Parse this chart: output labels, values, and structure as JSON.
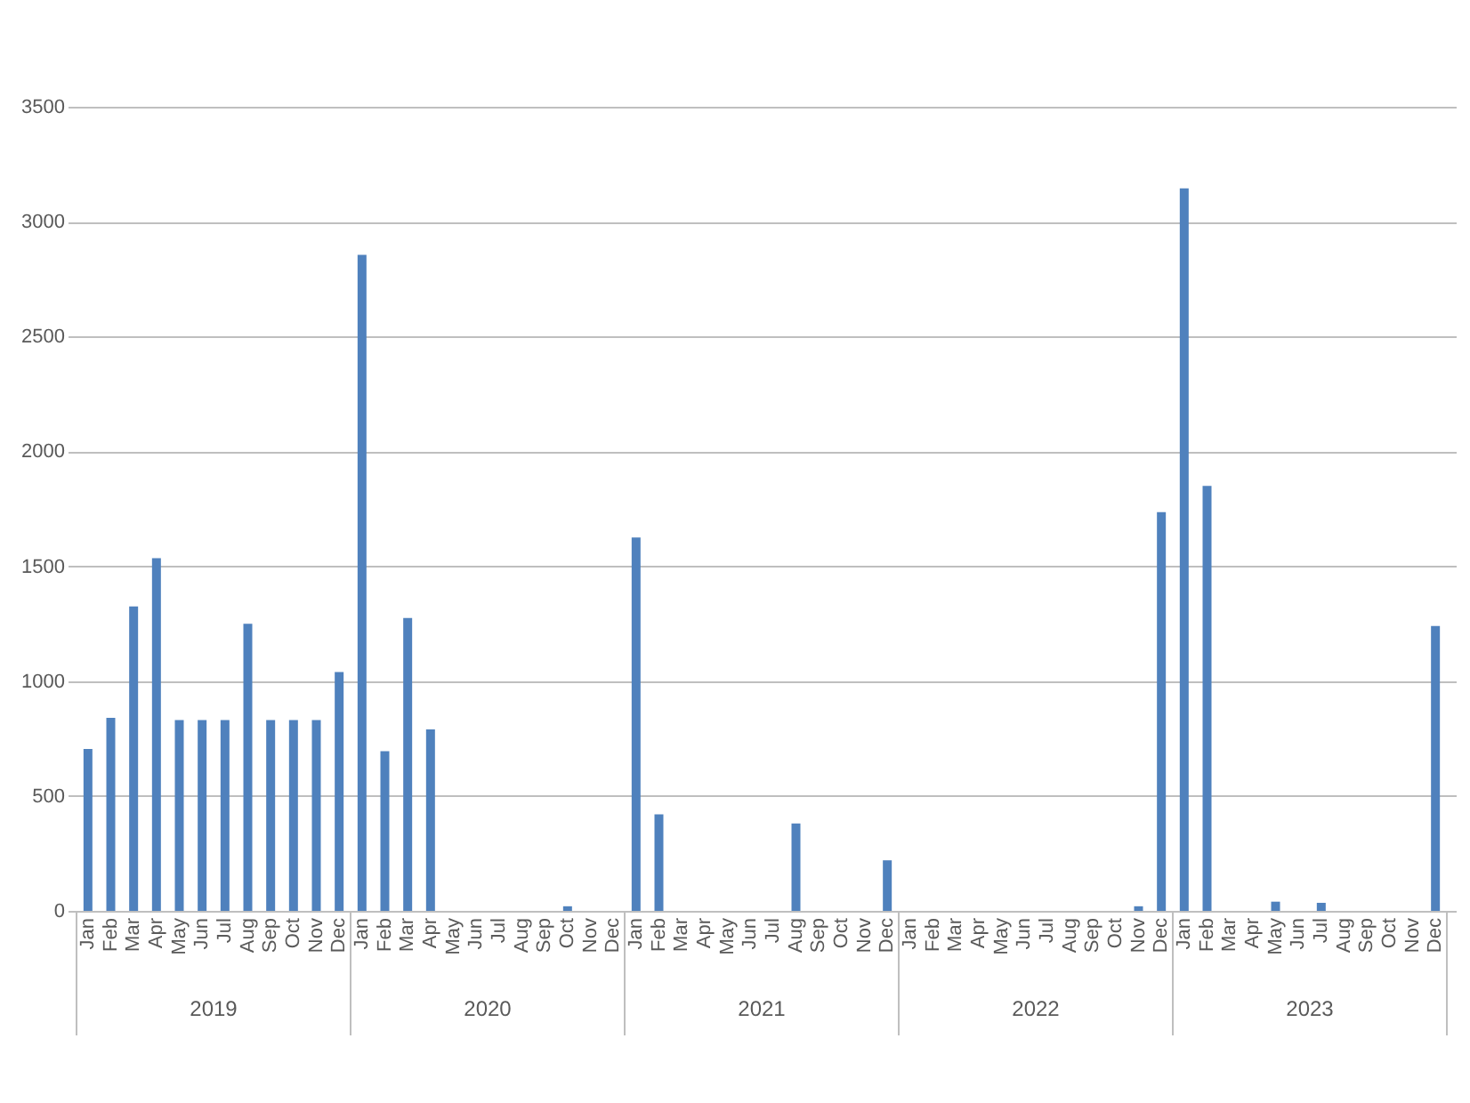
{
  "chart_data": {
    "type": "bar",
    "categories": [
      "Jan",
      "Feb",
      "Mar",
      "Apr",
      "May",
      "Jun",
      "Jul",
      "Aug",
      "Sep",
      "Oct",
      "Nov",
      "Dec",
      "Jan",
      "Feb",
      "Mar",
      "Apr",
      "May",
      "Jun",
      "Jul",
      "Aug",
      "Sep",
      "Oct",
      "Nov",
      "Dec",
      "Jan",
      "Feb",
      "Mar",
      "Apr",
      "May",
      "Jun",
      "Jul",
      "Aug",
      "Sep",
      "Oct",
      "Nov",
      "Dec",
      "Jan",
      "Feb",
      "Mar",
      "Apr",
      "May",
      "Jun",
      "Jul",
      "Aug",
      "Sep",
      "Oct",
      "Nov",
      "Dec",
      "Jan",
      "Feb",
      "Mar",
      "Apr",
      "May",
      "Jun",
      "Jul",
      "Aug",
      "Sep",
      "Oct",
      "Nov",
      "Dec"
    ],
    "series": [
      {
        "color": "#4f81bd",
        "values": [
          705,
          840,
          1325,
          1535,
          830,
          830,
          830,
          1250,
          830,
          830,
          830,
          1040,
          2855,
          695,
          1275,
          790,
          0,
          0,
          0,
          0,
          0,
          20,
          0,
          0,
          1625,
          420,
          0,
          0,
          0,
          0,
          0,
          380,
          0,
          0,
          0,
          220,
          0,
          0,
          0,
          0,
          0,
          0,
          0,
          0,
          0,
          0,
          20,
          1735,
          3145,
          1850,
          0,
          0,
          40,
          0,
          35,
          0,
          0,
          0,
          0,
          1240
        ]
      }
    ],
    "ylim": [
      0,
      3500
    ],
    "yticks": [
      0,
      500,
      1000,
      1500,
      2000,
      2500,
      3000,
      3500
    ],
    "grid": "y",
    "annotations": [
      "2019",
      "2020",
      "2021",
      "2022",
      "2023"
    ]
  }
}
